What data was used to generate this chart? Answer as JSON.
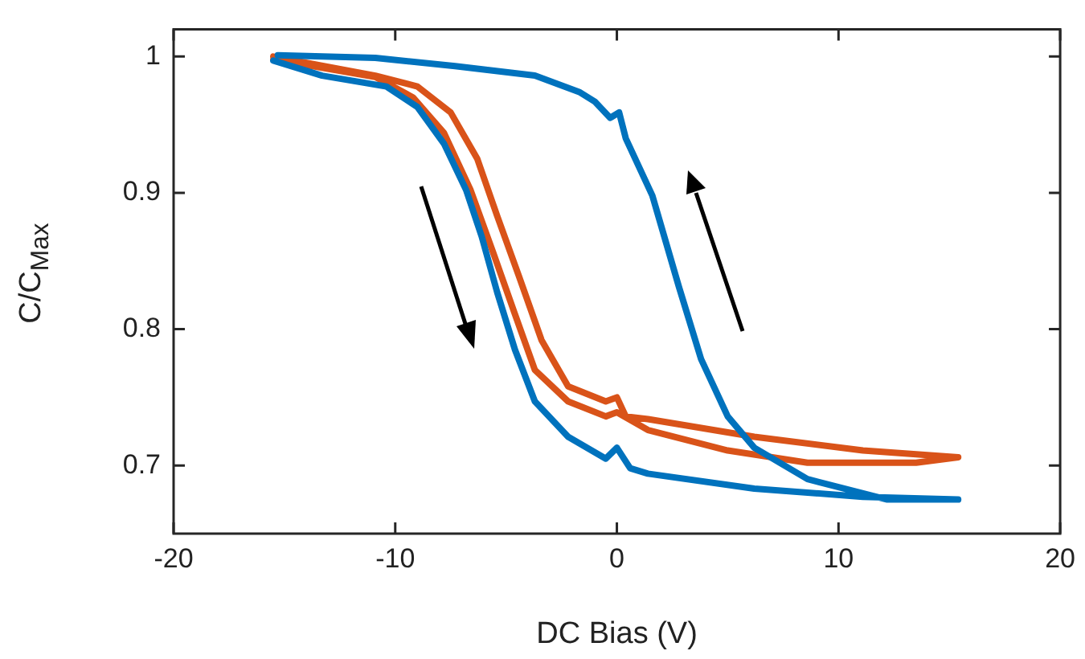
{
  "chart_data": {
    "type": "line",
    "xlabel": "DC Bias (V)",
    "ylabel": "C/C$_{Max}$",
    "xlim": [
      -20,
      20
    ],
    "xticks": [
      -20,
      -10,
      0,
      10,
      20
    ],
    "ylim": [
      0.65,
      1.02
    ],
    "yticks": [
      0.7,
      0.8,
      0.9,
      1
    ],
    "marker": "none",
    "series": [
      {
        "color": "#0072bd",
        "x": [
          -15.5,
          -13.3,
          -10.4,
          -9.0,
          -7.8,
          -6.8,
          -6.1,
          -5.4,
          -4.6,
          -3.7,
          -2.2,
          -0.5,
          0,
          0.6,
          1.4,
          6.2,
          11.1,
          15.4,
          12.2,
          8.6,
          6.2,
          5.0,
          3.8,
          2.8,
          1.6,
          0.4,
          0.1,
          -0.3,
          -1.0,
          -1.7,
          -3.7,
          -7.3,
          -10.9,
          -15.3
        ],
        "values": [
          0.997,
          0.986,
          0.978,
          0.963,
          0.936,
          0.902,
          0.868,
          0.827,
          0.785,
          0.747,
          0.721,
          0.705,
          0.713,
          0.698,
          0.694,
          0.683,
          0.677,
          0.675,
          0.675,
          0.69,
          0.713,
          0.736,
          0.778,
          0.831,
          0.898,
          0.94,
          0.959,
          0.955,
          0.967,
          0.974,
          0.986,
          0.993,
          0.999,
          1.001
        ]
      },
      {
        "color": "#d95319",
        "x": [
          -15.5,
          -10.9,
          -9.0,
          -7.5,
          -6.3,
          -5.4,
          -4.4,
          -3.4,
          -2.2,
          -0.5,
          0,
          0.4,
          1.4,
          6.2,
          11.1,
          15.4,
          13.5,
          8.6,
          5.0,
          1.4,
          0,
          -0.5,
          -2.2,
          -3.7,
          -4.6,
          -5.6,
          -6.6,
          -7.8,
          -9.2,
          -10.9,
          -15.5
        ],
        "values": [
          1.0,
          0.986,
          0.978,
          0.959,
          0.925,
          0.883,
          0.838,
          0.792,
          0.758,
          0.747,
          0.75,
          0.736,
          0.734,
          0.721,
          0.711,
          0.706,
          0.702,
          0.702,
          0.711,
          0.726,
          0.739,
          0.736,
          0.747,
          0.77,
          0.811,
          0.857,
          0.902,
          0.944,
          0.97,
          0.985,
          0.998
        ]
      }
    ]
  }
}
